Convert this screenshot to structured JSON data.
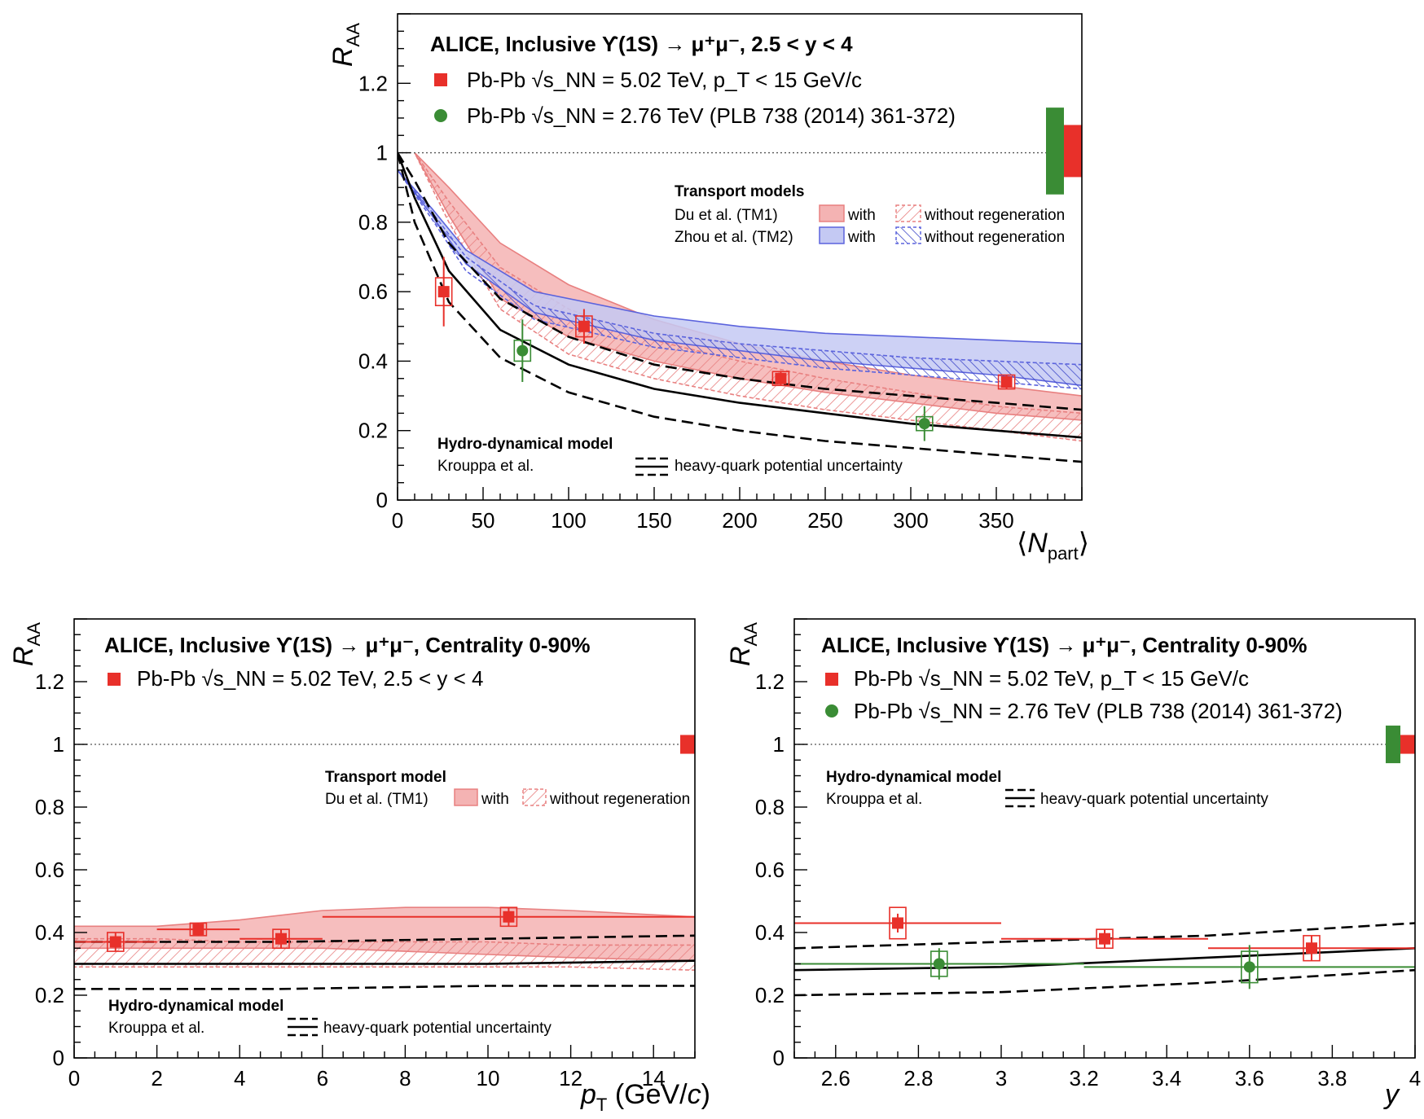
{
  "colors": {
    "red": "#e8302a",
    "red_band": "#f4b3b3",
    "red_edge": "#e88080",
    "green": "#3a8c35",
    "blue_band": "#c4c9f3",
    "blue_edge": "#5b63dd",
    "blue_hatch": "#3f49c9",
    "black": "#000000"
  },
  "chart_data": [
    {
      "type": "scatter",
      "title": "ALICE, Inclusive ϒ(1S) → μ⁺μ⁻, 2.5 < y < 4",
      "xlabel": "⟨N_part⟩",
      "ylabel": "R_AA",
      "xlim": [
        0,
        400
      ],
      "ylim": [
        0,
        1.4
      ],
      "xticks": [
        "0",
        "50",
        "100",
        "150",
        "200",
        "250",
        "300",
        "350"
      ],
      "yticks": [
        "0",
        "0.2",
        "0.4",
        "0.6",
        "0.8",
        "1",
        "1.2"
      ],
      "legend": [
        {
          "marker": "square",
          "color": "#e8302a",
          "label": "Pb-Pb √s_NN = 5.02 TeV, p_T < 15 GeV/c"
        },
        {
          "marker": "circle",
          "color": "#3a8c35",
          "label": "Pb-Pb √s_NN = 2.76 TeV (PLB 738 (2014) 361-372)"
        }
      ],
      "series": [
        {
          "name": "Pb-Pb √s_NN = 5.02 TeV, p_T < 15 GeV/c",
          "color": "#e8302a",
          "marker": "square",
          "x": [
            27,
            109,
            224,
            356
          ],
          "y": [
            0.6,
            0.5,
            0.35,
            0.34
          ],
          "stat": [
            0.1,
            0.05,
            0.02,
            0.02
          ],
          "syst": [
            0.04,
            0.03,
            0.02,
            0.02
          ]
        },
        {
          "name": "Pb-Pb √s_NN = 2.76 TeV (PLB 738 (2014) 361-372)",
          "color": "#3a8c35",
          "marker": "circle",
          "x": [
            73,
            308
          ],
          "y": [
            0.43,
            0.22
          ],
          "stat": [
            0.09,
            0.05
          ],
          "syst": [
            0.03,
            0.02
          ]
        }
      ],
      "global_uncertainty": [
        {
          "color": "#3a8c35",
          "low": 0.88,
          "high": 1.13
        },
        {
          "color": "#e8302a",
          "low": 0.93,
          "high": 1.08
        }
      ],
      "models": {
        "transport_header": "Transport models",
        "tm1_label": "Du et al. (TM1)",
        "tm2_label": "Zhou et al. (TM2)",
        "with_label": "with",
        "without_label": "without regeneration",
        "hydro_header": "Hydro-dynamical model",
        "hydro_label": "Krouppa et al.",
        "hydro_unc_label": "heavy-quark potential uncertainty",
        "tm1_with": {
          "x": [
            10,
            30,
            60,
            100,
            150,
            200,
            250,
            300,
            350,
            400
          ],
          "lo": [
            1.0,
            0.82,
            0.58,
            0.47,
            0.4,
            0.35,
            0.31,
            0.28,
            0.25,
            0.23
          ],
          "hi": [
            1.0,
            0.9,
            0.74,
            0.62,
            0.52,
            0.45,
            0.4,
            0.36,
            0.33,
            0.3
          ]
        },
        "tm1_without": {
          "x": [
            10,
            30,
            60,
            100,
            150,
            200,
            250,
            300,
            350,
            400
          ],
          "lo": [
            1.0,
            0.8,
            0.55,
            0.42,
            0.35,
            0.3,
            0.26,
            0.23,
            0.2,
            0.17
          ],
          "hi": [
            1.0,
            0.86,
            0.67,
            0.55,
            0.46,
            0.4,
            0.35,
            0.31,
            0.27,
            0.25
          ]
        },
        "tm2_with": {
          "x": [
            0,
            20,
            40,
            80,
            150,
            200,
            250,
            300,
            350,
            400
          ],
          "lo": [
            0.95,
            0.82,
            0.68,
            0.54,
            0.46,
            0.43,
            0.4,
            0.38,
            0.36,
            0.33
          ],
          "hi": [
            0.95,
            0.84,
            0.72,
            0.6,
            0.53,
            0.5,
            0.48,
            0.47,
            0.46,
            0.45
          ]
        },
        "tm2_without": {
          "x": [
            0,
            20,
            40,
            80,
            150,
            200,
            250,
            300,
            350,
            400
          ],
          "lo": [
            0.95,
            0.81,
            0.66,
            0.52,
            0.44,
            0.41,
            0.38,
            0.36,
            0.34,
            0.32
          ],
          "hi": [
            0.95,
            0.83,
            0.7,
            0.56,
            0.48,
            0.45,
            0.43,
            0.41,
            0.4,
            0.39
          ]
        },
        "hydro_central": {
          "x": [
            0,
            10,
            30,
            60,
            100,
            150,
            200,
            250,
            300,
            350,
            400
          ],
          "y": [
            1.0,
            0.87,
            0.66,
            0.49,
            0.39,
            0.32,
            0.28,
            0.25,
            0.22,
            0.2,
            0.18
          ]
        },
        "hydro_upper": {
          "x": [
            0,
            10,
            30,
            60,
            100,
            150,
            200,
            250,
            300,
            350,
            400
          ],
          "y": [
            1.0,
            0.92,
            0.74,
            0.58,
            0.47,
            0.39,
            0.35,
            0.32,
            0.3,
            0.28,
            0.26
          ]
        },
        "hydro_lower": {
          "x": [
            0,
            10,
            30,
            60,
            100,
            150,
            200,
            250,
            300,
            350,
            400
          ],
          "y": [
            1.0,
            0.8,
            0.57,
            0.41,
            0.31,
            0.24,
            0.2,
            0.17,
            0.15,
            0.13,
            0.11
          ]
        }
      }
    },
    {
      "type": "scatter",
      "title": "ALICE, Inclusive ϒ(1S) → μ⁺μ⁻, Centrality 0-90%",
      "xlabel": "p_T (GeV/c)",
      "ylabel": "R_AA",
      "xlim": [
        0,
        15
      ],
      "ylim": [
        0,
        1.4
      ],
      "xticks": [
        "0",
        "2",
        "4",
        "6",
        "8",
        "10",
        "12",
        "14"
      ],
      "yticks": [
        "0",
        "0.2",
        "0.4",
        "0.6",
        "0.8",
        "1",
        "1.2"
      ],
      "legend": [
        {
          "marker": "square",
          "color": "#e8302a",
          "label": "Pb-Pb √s_NN = 5.02 TeV, 2.5 < y < 4"
        }
      ],
      "series": [
        {
          "name": "Pb-Pb √s_NN = 5.02 TeV, 2.5 < y < 4",
          "color": "#e8302a",
          "marker": "square",
          "x": [
            1.0,
            3.0,
            5.0,
            10.5
          ],
          "xerr": [
            1.0,
            1.0,
            1.0,
            4.5
          ],
          "y": [
            0.37,
            0.41,
            0.38,
            0.45
          ],
          "stat": [
            0.03,
            0.02,
            0.03,
            0.03
          ],
          "syst": [
            0.03,
            0.02,
            0.03,
            0.03
          ]
        }
      ],
      "global_uncertainty": [
        {
          "color": "#e8302a",
          "low": 0.97,
          "high": 1.03
        }
      ],
      "models": {
        "transport_header": "Transport model",
        "tm1_label": "Du et al. (TM1)",
        "with_label": "with",
        "without_label": "without regeneration",
        "hydro_header": "Hydro-dynamical model",
        "hydro_label": "Krouppa et al.",
        "hydro_unc_label": "heavy-quark potential uncertainty",
        "tm1_with": {
          "x": [
            0,
            2,
            4,
            6,
            8,
            10,
            12,
            15
          ],
          "lo": [
            0.35,
            0.35,
            0.35,
            0.35,
            0.34,
            0.33,
            0.32,
            0.31
          ],
          "hi": [
            0.42,
            0.42,
            0.44,
            0.47,
            0.48,
            0.48,
            0.47,
            0.45
          ]
        },
        "tm1_without": {
          "x": [
            0,
            2,
            4,
            6,
            8,
            10,
            12,
            15
          ],
          "lo": [
            0.29,
            0.29,
            0.29,
            0.29,
            0.29,
            0.29,
            0.29,
            0.28
          ],
          "hi": [
            0.38,
            0.38,
            0.37,
            0.37,
            0.37,
            0.37,
            0.36,
            0.36
          ]
        },
        "hydro_central": {
          "x": [
            0,
            5,
            10,
            15
          ],
          "y": [
            0.3,
            0.3,
            0.3,
            0.31
          ]
        },
        "hydro_upper": {
          "x": [
            0,
            5,
            10,
            15
          ],
          "y": [
            0.37,
            0.37,
            0.38,
            0.39
          ]
        },
        "hydro_lower": {
          "x": [
            0,
            5,
            10,
            15
          ],
          "y": [
            0.22,
            0.22,
            0.23,
            0.23
          ]
        }
      }
    },
    {
      "type": "scatter",
      "title": "ALICE, Inclusive ϒ(1S) → μ⁺μ⁻, Centrality 0-90%",
      "xlabel": "y",
      "ylabel": "R_AA",
      "xlim": [
        2.5,
        4.0
      ],
      "ylim": [
        0,
        1.4
      ],
      "xticks": [
        "2.6",
        "2.8",
        "3",
        "3.2",
        "3.4",
        "3.6",
        "3.8",
        "4"
      ],
      "yticks": [
        "0",
        "0.2",
        "0.4",
        "0.6",
        "0.8",
        "1",
        "1.2"
      ],
      "legend": [
        {
          "marker": "square",
          "color": "#e8302a",
          "label": "Pb-Pb √s_NN = 5.02 TeV, p_T < 15 GeV/c"
        },
        {
          "marker": "circle",
          "color": "#3a8c35",
          "label": "Pb-Pb √s_NN = 2.76 TeV (PLB 738 (2014) 361-372)"
        }
      ],
      "series": [
        {
          "name": "Pb-Pb √s_NN = 5.02 TeV, p_T < 15 GeV/c",
          "color": "#e8302a",
          "marker": "square",
          "x": [
            2.75,
            3.25,
            3.75
          ],
          "xerr": [
            0.25,
            0.25,
            0.25
          ],
          "y": [
            0.43,
            0.38,
            0.35
          ],
          "stat": [
            0.03,
            0.03,
            0.04
          ],
          "syst": [
            0.05,
            0.03,
            0.04
          ]
        },
        {
          "name": "Pb-Pb √s_NN = 2.76 TeV (PLB 738 (2014) 361-372)",
          "color": "#3a8c35",
          "marker": "circle",
          "x": [
            2.85,
            3.6
          ],
          "xerr": [
            0.35,
            0.4
          ],
          "y": [
            0.3,
            0.29
          ],
          "stat": [
            0.05,
            0.07
          ],
          "syst": [
            0.04,
            0.05
          ]
        }
      ],
      "global_uncertainty": [
        {
          "color": "#3a8c35",
          "low": 0.94,
          "high": 1.06
        },
        {
          "color": "#e8302a",
          "low": 0.97,
          "high": 1.03
        }
      ],
      "models": {
        "hydro_header": "Hydro-dynamical model",
        "hydro_label": "Krouppa et al.",
        "hydro_unc_label": "heavy-quark potential uncertainty",
        "hydro_central": {
          "x": [
            2.5,
            3.0,
            3.5,
            4.0
          ],
          "y": [
            0.28,
            0.29,
            0.32,
            0.35
          ]
        },
        "hydro_upper": {
          "x": [
            2.5,
            3.0,
            3.5,
            4.0
          ],
          "y": [
            0.35,
            0.37,
            0.39,
            0.43
          ]
        },
        "hydro_lower": {
          "x": [
            2.5,
            3.0,
            3.5,
            4.0
          ],
          "y": [
            0.2,
            0.21,
            0.24,
            0.28
          ]
        }
      }
    }
  ]
}
